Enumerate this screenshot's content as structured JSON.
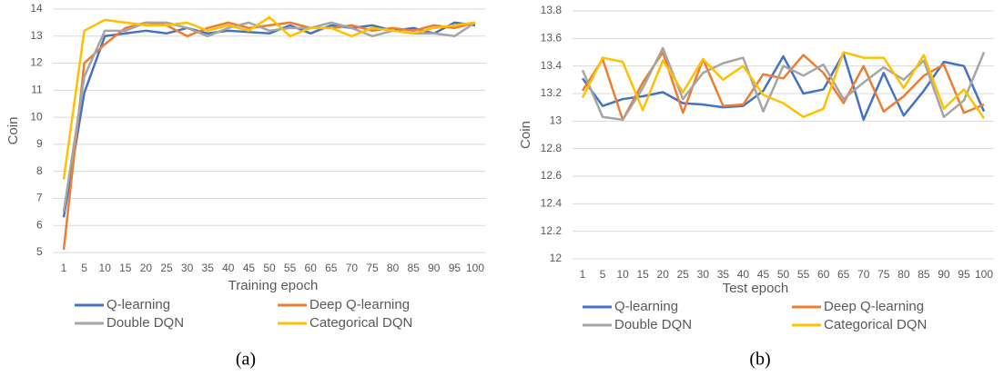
{
  "chart_data": [
    {
      "type": "line",
      "caption": "(a)",
      "x_label": "Training epoch",
      "y_label": "Coin",
      "categories": [
        1,
        5,
        10,
        15,
        20,
        25,
        30,
        35,
        40,
        45,
        50,
        55,
        60,
        65,
        70,
        75,
        80,
        85,
        90,
        95,
        100
      ],
      "ylim": [
        5,
        14
      ],
      "yticks": [
        5,
        6,
        7,
        8,
        9,
        10,
        11,
        12,
        13,
        14
      ],
      "grid": true,
      "series": [
        {
          "name": "Q-learning",
          "color": "#4472c4",
          "values": [
            6.3,
            10.9,
            13.0,
            13.1,
            13.2,
            13.1,
            13.3,
            13.1,
            13.2,
            13.15,
            13.1,
            13.4,
            13.1,
            13.4,
            13.3,
            13.4,
            13.2,
            13.3,
            13.1,
            13.5,
            13.4
          ]
        },
        {
          "name": "Deep Q-learning",
          "color": "#ed7d31",
          "values": [
            5.1,
            12.0,
            12.7,
            13.3,
            13.5,
            13.4,
            13.0,
            13.3,
            13.5,
            13.3,
            13.4,
            13.5,
            13.3,
            13.3,
            13.4,
            13.2,
            13.3,
            13.2,
            13.4,
            13.3,
            13.5
          ]
        },
        {
          "name": "Double DQN",
          "color": "#a5a5a5",
          "values": [
            6.5,
            11.5,
            13.2,
            13.2,
            13.5,
            13.5,
            13.3,
            13.0,
            13.3,
            13.5,
            13.2,
            13.3,
            13.3,
            13.5,
            13.3,
            13.0,
            13.2,
            13.1,
            13.1,
            13.0,
            13.5
          ]
        },
        {
          "name": "Categorical DQN",
          "color": "#ffc000",
          "values": [
            7.7,
            13.2,
            13.6,
            13.5,
            13.4,
            13.4,
            13.5,
            13.2,
            13.4,
            13.2,
            13.7,
            13.0,
            13.3,
            13.3,
            13.0,
            13.3,
            13.2,
            13.1,
            13.3,
            13.4,
            13.5
          ]
        }
      ]
    },
    {
      "type": "line",
      "caption": "(b)",
      "x_label": "Test epoch",
      "y_label": "Coin",
      "categories": [
        1,
        5,
        10,
        15,
        20,
        25,
        30,
        35,
        40,
        45,
        50,
        55,
        60,
        65,
        70,
        75,
        80,
        85,
        90,
        95,
        100
      ],
      "ylim": [
        12,
        13.8
      ],
      "yticks": [
        12,
        12.2,
        12.4,
        12.6,
        12.8,
        13,
        13.2,
        13.4,
        13.6,
        13.8
      ],
      "grid": true,
      "series": [
        {
          "name": "Q-learning",
          "color": "#4472c4",
          "values": [
            13.31,
            13.11,
            13.16,
            13.18,
            13.21,
            13.13,
            13.12,
            13.1,
            13.11,
            13.22,
            13.47,
            13.2,
            13.23,
            13.49,
            13.01,
            13.35,
            13.04,
            13.22,
            13.43,
            13.4,
            13.07
          ]
        },
        {
          "name": "Deep Q-learning",
          "color": "#ed7d31",
          "values": [
            13.22,
            13.45,
            13.01,
            13.28,
            13.5,
            13.06,
            13.45,
            13.11,
            13.12,
            13.34,
            13.31,
            13.48,
            13.35,
            13.13,
            13.4,
            13.07,
            13.18,
            13.33,
            13.41,
            13.06,
            13.12
          ]
        },
        {
          "name": "Double DQN",
          "color": "#a5a5a5",
          "values": [
            13.37,
            13.03,
            13.01,
            13.24,
            13.53,
            13.16,
            13.35,
            13.42,
            13.46,
            13.07,
            13.4,
            13.33,
            13.41,
            13.16,
            13.28,
            13.39,
            13.3,
            13.44,
            13.03,
            13.15,
            13.5
          ]
        },
        {
          "name": "Categorical DQN",
          "color": "#ffc000",
          "values": [
            13.17,
            13.46,
            13.43,
            13.08,
            13.44,
            13.21,
            13.45,
            13.3,
            13.4,
            13.19,
            13.13,
            13.03,
            13.09,
            13.5,
            13.46,
            13.46,
            13.24,
            13.48,
            13.09,
            13.23,
            13.02
          ]
        }
      ]
    }
  ]
}
